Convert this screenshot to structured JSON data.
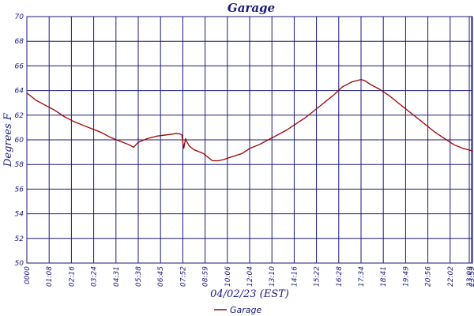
{
  "chart_data": {
    "type": "line",
    "title": "Garage",
    "xlabel": "04/02/23 (EST)",
    "ylabel": "Degrees F",
    "ylim": [
      50,
      70
    ],
    "yticks": [
      "50",
      "52",
      "54",
      "56",
      "58",
      "60",
      "62",
      "64",
      "66",
      "68",
      "70"
    ],
    "xticks": [
      "0000",
      "01:08",
      "02:16",
      "03:24",
      "04:31",
      "05:38",
      "06:45",
      "07:52",
      "08:59",
      "10:06",
      "12:04",
      "13:10",
      "14:16",
      "15:22",
      "16:28",
      "17:34",
      "18:41",
      "19:49",
      "20:56",
      "22:02",
      "23:09",
      "23:59"
    ],
    "grid": true,
    "legend_position": "bottom-center",
    "line_color": "#a00000",
    "grid_color": "#1a1a7e",
    "series": [
      {
        "name": "Garage",
        "x": [
          0,
          0.5,
          1,
          1.5,
          2,
          2.5,
          3,
          3.5,
          4,
          4.5,
          5,
          5.5,
          5.75,
          6,
          6.5,
          7,
          7.5,
          8,
          8.2,
          8.35,
          8.45,
          8.55,
          8.6,
          8.75,
          9,
          9.5,
          10,
          10.3,
          10.6,
          11,
          11.2,
          11.4,
          11.6,
          12,
          12.5,
          13,
          13.5,
          14,
          14.5,
          15,
          15.5,
          16,
          16.5,
          17,
          17.5,
          18,
          18.2,
          18.5,
          19,
          19.5,
          20,
          20.5,
          21,
          21.5,
          22,
          22.5,
          23,
          23.5,
          24
        ],
        "values": [
          63.8,
          63.2,
          62.8,
          62.4,
          61.9,
          61.5,
          61.2,
          60.9,
          60.6,
          60.2,
          59.9,
          59.6,
          59.4,
          59.8,
          60.1,
          60.3,
          60.4,
          60.5,
          60.5,
          60.4,
          59.3,
          60.1,
          59.9,
          59.5,
          59.2,
          58.9,
          58.3,
          58.3,
          58.4,
          58.6,
          58.7,
          58.8,
          58.9,
          59.3,
          59.6,
          60.0,
          60.4,
          60.8,
          61.3,
          61.8,
          62.4,
          63.0,
          63.6,
          64.3,
          64.7,
          64.9,
          64.8,
          64.5,
          64.1,
          63.6,
          63.0,
          62.4,
          61.8,
          61.2,
          60.6,
          60.1,
          59.6,
          59.3,
          59.1
        ]
      }
    ]
  }
}
